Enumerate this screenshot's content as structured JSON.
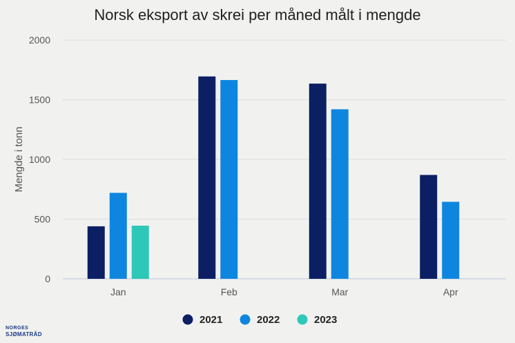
{
  "colors": {
    "2021": "#0d1f63",
    "2022": "#0e86e0",
    "2023": "#2ec8b8"
  },
  "logo": {
    "line1": "NORGES",
    "line2": "SJØMATRÅD"
  },
  "chart_data": {
    "type": "bar",
    "title": "Norsk eksport av skrei per måned målt i mengde",
    "xlabel": "",
    "ylabel": "Mengde i tonn",
    "ylim": [
      0,
      2000
    ],
    "yticks": [
      0,
      500,
      1000,
      1500,
      2000
    ],
    "grid": true,
    "legend": "bottom-center",
    "categories": [
      "Jan",
      "Feb",
      "Mar",
      "Apr"
    ],
    "series": [
      {
        "name": "2021",
        "values": [
          440,
          1695,
          1635,
          870
        ]
      },
      {
        "name": "2022",
        "values": [
          720,
          1665,
          1420,
          645
        ]
      },
      {
        "name": "2023",
        "values": [
          445,
          null,
          null,
          null
        ]
      }
    ]
  }
}
